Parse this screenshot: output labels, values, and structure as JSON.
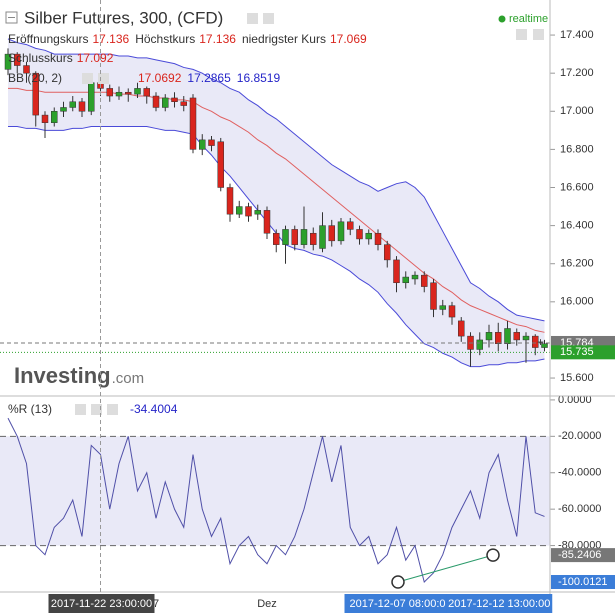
{
  "chart_data": [
    {
      "type": "candlestick",
      "title": "Silber Futures, 300, (CFD)",
      "badge": "realtime",
      "ohlc_labels": [
        {
          "label": "Eröffnungskurs",
          "value": 17.136
        },
        {
          "label": "Höchstkurs",
          "value": 17.136
        },
        {
          "label": "niedrigster Kurs",
          "value": 17.069
        },
        {
          "label": "Schlusskurs",
          "value": 17.092
        }
      ],
      "categories": [
        null,
        null,
        null,
        null,
        null,
        null,
        null,
        null,
        null,
        null,
        "2017-11-22 23:00:00",
        null,
        null,
        null,
        null,
        null,
        "7",
        null,
        null,
        null,
        null,
        null,
        null,
        null,
        null,
        null,
        null,
        null,
        "Dez",
        null,
        null,
        null,
        null,
        null,
        null,
        null,
        null,
        null,
        null,
        null,
        null,
        null,
        "2017-12-07 08:00:0",
        null,
        null,
        null,
        null,
        null,
        null,
        null,
        null,
        null,
        null,
        "2017-12-12 13:00:00",
        null,
        null,
        null,
        null,
        null
      ],
      "open": [
        17.22,
        17.3,
        17.24,
        17.2,
        16.98,
        16.94,
        17.0,
        17.02,
        17.05,
        17.0,
        17.15,
        17.12,
        17.08,
        17.1,
        17.09,
        17.12,
        17.08,
        17.02,
        17.07,
        17.05,
        17.07,
        16.8,
        16.85,
        16.84,
        16.6,
        16.46,
        16.5,
        16.46,
        16.48,
        16.36,
        16.3,
        16.38,
        16.3,
        16.36,
        16.28,
        16.4,
        16.32,
        16.42,
        16.38,
        16.33,
        16.36,
        16.3,
        16.22,
        16.1,
        16.12,
        16.14,
        16.1,
        15.96,
        15.98,
        15.9,
        15.82,
        15.75,
        15.8,
        15.84,
        15.78,
        15.84,
        15.8,
        15.82,
        15.76
      ],
      "high": [
        17.33,
        17.31,
        17.26,
        17.21,
        17.0,
        17.02,
        17.05,
        17.08,
        17.07,
        17.17,
        17.17,
        17.14,
        17.13,
        17.12,
        17.15,
        17.13,
        17.1,
        17.09,
        17.1,
        17.08,
        17.09,
        16.88,
        16.87,
        16.86,
        16.62,
        16.53,
        16.52,
        16.51,
        16.5,
        16.38,
        16.4,
        16.4,
        16.5,
        16.39,
        16.47,
        16.43,
        16.44,
        16.44,
        16.4,
        16.38,
        16.38,
        16.32,
        16.24,
        16.16,
        16.16,
        16.16,
        16.12,
        16.01,
        16.0,
        15.92,
        15.84,
        15.84,
        15.88,
        15.89,
        15.9,
        15.86,
        15.84,
        15.83,
        15.8
      ],
      "low": [
        17.19,
        17.2,
        17.15,
        16.92,
        16.86,
        16.92,
        16.97,
        17.0,
        16.97,
        16.98,
        17.08,
        17.05,
        17.06,
        17.05,
        17.07,
        17.04,
        17.0,
        17.0,
        17.02,
        17.0,
        16.78,
        16.77,
        16.79,
        16.58,
        16.42,
        16.44,
        16.42,
        16.43,
        16.33,
        16.26,
        16.2,
        16.27,
        16.28,
        16.27,
        16.26,
        16.29,
        16.3,
        16.35,
        16.3,
        16.3,
        16.27,
        16.18,
        16.05,
        16.07,
        16.09,
        16.05,
        15.92,
        15.93,
        15.88,
        15.79,
        15.66,
        15.72,
        15.76,
        15.74,
        15.75,
        15.77,
        15.68,
        15.72,
        15.74
      ],
      "close": [
        17.3,
        17.24,
        17.2,
        16.98,
        16.94,
        17.0,
        17.02,
        17.05,
        17.0,
        17.15,
        17.12,
        17.08,
        17.1,
        17.09,
        17.12,
        17.08,
        17.02,
        17.07,
        17.05,
        17.03,
        16.8,
        16.85,
        16.82,
        16.6,
        16.46,
        16.5,
        16.45,
        16.48,
        16.36,
        16.3,
        16.38,
        16.3,
        16.38,
        16.3,
        16.4,
        16.32,
        16.42,
        16.38,
        16.33,
        16.36,
        16.3,
        16.22,
        16.1,
        16.13,
        16.14,
        16.08,
        15.96,
        15.98,
        15.92,
        15.82,
        15.75,
        15.8,
        15.84,
        15.78,
        15.86,
        15.8,
        15.82,
        15.76,
        15.78
      ],
      "up_color": "#2ca02c",
      "down_color": "#d9251d",
      "indicator": {
        "name": "BB (20, 2)",
        "values": [
          17.0692,
          17.2865,
          16.8519
        ],
        "value_colors": [
          "#d9251d",
          "#2525c8",
          "#2525c8"
        ],
        "fill": "rgba(110,110,200,0.15)",
        "series": [
          {
            "color": "#e06060",
            "values": [
              17.12,
              17.12,
              17.11,
              17.11,
              17.1,
              17.1,
              17.1,
              17.1,
              17.1,
              17.1,
              17.1,
              17.1,
              17.09,
              17.09,
              17.08,
              17.08,
              17.07,
              17.07,
              17.06,
              17.06,
              17.05,
              17.02,
              17.0,
              16.97,
              16.95,
              16.92,
              16.89,
              16.85,
              16.82,
              16.78,
              16.75,
              16.71,
              16.67,
              16.63,
              16.59,
              16.55,
              16.51,
              16.47,
              16.43,
              16.39,
              16.35,
              16.31,
              16.27,
              16.23,
              16.19,
              16.15,
              16.12,
              16.08,
              16.05,
              16.01,
              15.98,
              15.96,
              15.94,
              15.92,
              15.9,
              15.88,
              15.87,
              15.85,
              15.84
            ]
          },
          {
            "color": "#4a4ad8",
            "values": [
              17.38,
              17.36,
              17.35,
              17.33,
              17.32,
              17.3,
              17.3,
              17.3,
              17.3,
              17.3,
              17.3,
              17.3,
              17.29,
              17.29,
              17.28,
              17.28,
              17.27,
              17.26,
              17.25,
              17.23,
              17.22,
              17.2,
              17.17,
              17.15,
              17.12,
              17.1,
              17.06,
              17.03,
              16.99,
              16.96,
              16.92,
              16.88,
              16.84,
              16.8,
              16.76,
              16.72,
              16.69,
              16.66,
              16.63,
              16.61,
              16.58,
              16.6,
              16.62,
              16.63,
              16.6,
              16.55,
              16.46,
              16.37,
              16.28,
              16.19,
              16.1,
              16.07,
              16.03,
              16.0,
              15.96,
              15.93,
              15.92,
              15.91,
              15.9
            ]
          },
          {
            "color": "#4a4ad8",
            "values": [
              16.92,
              16.92,
              16.91,
              16.91,
              16.9,
              16.9,
              16.9,
              16.91,
              16.91,
              16.92,
              16.92,
              16.92,
              16.92,
              16.92,
              16.92,
              16.92,
              16.91,
              16.9,
              16.9,
              16.89,
              16.88,
              16.82,
              16.77,
              16.71,
              16.66,
              16.6,
              16.54,
              16.48,
              16.42,
              16.36,
              16.3,
              16.28,
              16.27,
              16.25,
              16.24,
              16.22,
              16.19,
              16.16,
              16.12,
              16.09,
              16.05,
              15.99,
              15.94,
              15.88,
              15.83,
              15.78,
              15.76,
              15.73,
              15.71,
              15.68,
              15.66,
              15.66,
              15.67,
              15.67,
              15.68,
              15.68,
              15.69,
              15.69,
              15.7
            ]
          }
        ]
      },
      "price_markers": [
        {
          "value": 15.784,
          "label": "15.784",
          "color": "#777777"
        },
        {
          "value": 15.735,
          "label": "15.735",
          "color": "#2ca02c"
        }
      ],
      "watermark": {
        "brand": "Investing",
        "suffix": ".com"
      },
      "ylim": [
        15.511,
        17.584
      ],
      "yticks": [
        {
          "value": 17.4,
          "label": "17.400"
        },
        {
          "value": 17.2,
          "label": "17.200"
        },
        {
          "value": 17.0,
          "label": "17.000"
        },
        {
          "value": 16.8,
          "label": "16.800"
        },
        {
          "value": 16.6,
          "label": "16.600"
        },
        {
          "value": 16.4,
          "label": "16.400"
        },
        {
          "value": 16.2,
          "label": "16.200"
        },
        {
          "value": 16.0,
          "label": "16.000"
        },
        {
          "value": 15.6,
          "label": "15.600"
        }
      ]
    },
    {
      "type": "line",
      "name": "%R (13)",
      "current": -34.4004,
      "color": "#5050a8",
      "values": [
        -10,
        -20,
        -35,
        -80,
        -85,
        -70,
        -65,
        -55,
        -75,
        -25,
        -30,
        -60,
        -35,
        -20,
        -50,
        -40,
        -65,
        -45,
        -60,
        -70,
        -30,
        -60,
        -75,
        -65,
        -90,
        -80,
        -75,
        -85,
        -90,
        -80,
        -85,
        -75,
        -60,
        -40,
        -20,
        -45,
        -25,
        -70,
        -80,
        -75,
        -90,
        -85,
        -70,
        -88,
        -80,
        -100,
        -95,
        -85,
        -70,
        -60,
        -50,
        -65,
        -40,
        -30,
        -55,
        -75,
        -20,
        -62,
        -64
      ],
      "levels": [
        -20,
        -80
      ],
      "markers": [
        {
          "value": -85.2406,
          "label": "-85.2406",
          "color": "#777777"
        },
        {
          "value": -100.0121,
          "label": "-100.0121",
          "color": "#3b7dd8"
        }
      ],
      "ylim": [
        -105.5,
        1.6
      ],
      "yticks": [
        {
          "value": 0,
          "label": "0.0000"
        },
        {
          "value": -20,
          "label": "-20.0000"
        },
        {
          "value": -40,
          "label": "-40.0000"
        },
        {
          "value": -60,
          "label": "-60.0000"
        },
        {
          "value": -80,
          "label": "-80.0000"
        }
      ]
    }
  ]
}
